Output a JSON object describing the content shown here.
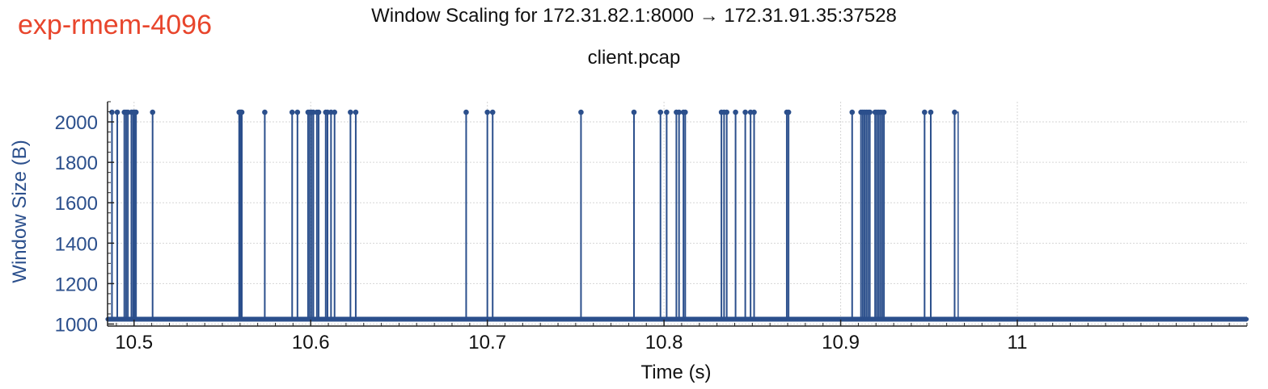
{
  "tag": "exp-rmem-4096",
  "chart_data": {
    "type": "line",
    "title": "Window Scaling for 172.31.82.1:8000 → 172.31.91.35:37528",
    "subtitle": "client.pcap",
    "xlabel": "Time (s)",
    "ylabel": "Window Size (B)",
    "xlim": [
      10.485,
      11.13
    ],
    "ylim": [
      990,
      2100
    ],
    "xticks": [
      10.5,
      10.6,
      10.7,
      10.8,
      10.9,
      11
    ],
    "xtick_labels": [
      "10.5",
      "10.6",
      "10.7",
      "10.8",
      "10.9",
      "11"
    ],
    "yticks": [
      1000,
      1200,
      1400,
      1600,
      1800,
      2000
    ],
    "ytick_labels": [
      "1000",
      "1200",
      "1400",
      "1600",
      "1800",
      "2000"
    ],
    "grid": true,
    "series_color": "#2b4f8c",
    "series": [
      {
        "baseline": 1024,
        "peak": 2048,
        "peak_times": [
          10.4875,
          10.4905,
          10.4945,
          10.4955,
          10.4965,
          10.4985,
          10.4995,
          10.5003,
          10.5011,
          10.5105,
          10.5595,
          10.56,
          10.5605,
          10.561,
          10.574,
          10.5895,
          10.5925,
          10.5985,
          10.5995,
          10.6005,
          10.6015,
          10.6035,
          10.6045,
          10.6085,
          10.6095,
          10.6115,
          10.6135,
          10.6225,
          10.6255,
          10.688,
          10.7,
          10.703,
          10.753,
          10.783,
          10.798,
          10.8015,
          10.807,
          10.8085,
          10.811,
          10.812,
          10.8325,
          10.834,
          10.8355,
          10.8405,
          10.846,
          10.849,
          10.851,
          10.8695,
          10.8705,
          10.9065,
          10.9115,
          10.9125,
          10.9135,
          10.9145,
          10.9155,
          10.9165,
          10.9195,
          10.9205,
          10.9215,
          10.9225,
          10.9235,
          10.9245,
          10.9475,
          10.951,
          10.9645
        ],
        "final_step": [
          10.9645,
          10.9665
        ]
      }
    ]
  }
}
